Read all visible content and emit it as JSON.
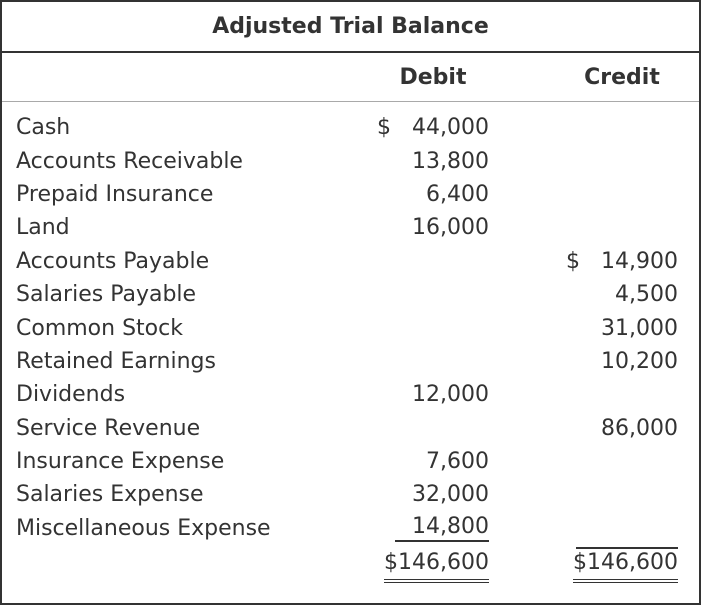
{
  "table": {
    "title": "Adjusted Trial Balance",
    "columns": {
      "debit": "Debit",
      "credit": "Credit"
    },
    "currency_symbol": "$",
    "rows": [
      {
        "account": "Cash",
        "debit": "44,000",
        "debit_dollar": "$",
        "credit": "",
        "credit_dollar": ""
      },
      {
        "account": "Accounts Receivable",
        "debit": "13,800",
        "debit_dollar": "",
        "credit": "",
        "credit_dollar": ""
      },
      {
        "account": "Prepaid Insurance",
        "debit": "6,400",
        "debit_dollar": "",
        "credit": "",
        "credit_dollar": ""
      },
      {
        "account": "Land",
        "debit": "16,000",
        "debit_dollar": "",
        "credit": "",
        "credit_dollar": ""
      },
      {
        "account": "Accounts Payable",
        "debit": "",
        "debit_dollar": "",
        "credit": "14,900",
        "credit_dollar": "$"
      },
      {
        "account": "Salaries Payable",
        "debit": "",
        "debit_dollar": "",
        "credit": "4,500",
        "credit_dollar": ""
      },
      {
        "account": "Common Stock",
        "debit": "",
        "debit_dollar": "",
        "credit": "31,000",
        "credit_dollar": ""
      },
      {
        "account": "Retained Earnings",
        "debit": "",
        "debit_dollar": "",
        "credit": "10,200",
        "credit_dollar": ""
      },
      {
        "account": "Dividends",
        "debit": "12,000",
        "debit_dollar": "",
        "credit": "",
        "credit_dollar": ""
      },
      {
        "account": "Service Revenue",
        "debit": "",
        "debit_dollar": "",
        "credit": "86,000",
        "credit_dollar": ""
      },
      {
        "account": "Insurance Expense",
        "debit": "7,600",
        "debit_dollar": "",
        "credit": "",
        "credit_dollar": ""
      },
      {
        "account": "Salaries Expense",
        "debit": "32,000",
        "debit_dollar": "",
        "credit": "",
        "credit_dollar": ""
      },
      {
        "account": "Miscellaneous Expense",
        "debit": "14,800",
        "debit_dollar": "",
        "credit": "",
        "credit_dollar": "",
        "debit_rule": true
      }
    ],
    "totals": {
      "debit": "$146,600",
      "credit": "$146,600"
    }
  },
  "colors": {
    "text": "#333333",
    "border": "#333333",
    "header_rule": "#a9a9a9",
    "background": "#ffffff"
  }
}
